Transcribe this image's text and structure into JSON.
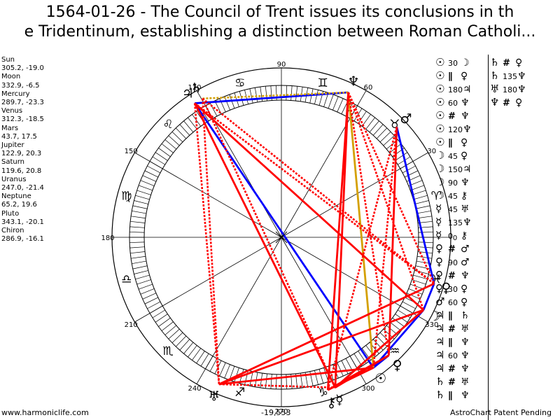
{
  "title_line1": "1564-01-26 - The Council of Trent issues its conclusions in th",
  "title_line2": "e Tridentinum, establishing a distinction between Roman Catholi...",
  "planets": [
    {
      "name": "Sun",
      "pos": "305.2, -19.0"
    },
    {
      "name": "Moon",
      "pos": "332.9, -6.5"
    },
    {
      "name": "Mercury",
      "pos": "289.7, -23.3"
    },
    {
      "name": "Venus",
      "pos": "312.3, -18.5"
    },
    {
      "name": "Mars",
      "pos": "43.7, 17.5"
    },
    {
      "name": "Jupiter",
      "pos": "122.9, 20.3"
    },
    {
      "name": "Saturn",
      "pos": "119.6, 20.8"
    },
    {
      "name": "Uranus",
      "pos": "247.0, -21.4"
    },
    {
      "name": "Neptune",
      "pos": "65.2, 19.6"
    },
    {
      "name": "Pluto",
      "pos": "343.1, -20.1"
    },
    {
      "name": "Chiron",
      "pos": "286.9, -16.1"
    }
  ],
  "aspects_col1": [
    {
      "a": "☉",
      "asp": "30",
      "b": "☽"
    },
    {
      "a": "☉",
      "asp": "∥",
      "b": "♀"
    },
    {
      "a": "☉",
      "asp": "180",
      "b": "♃"
    },
    {
      "a": "☉",
      "asp": "60",
      "b": "♆"
    },
    {
      "a": "☉",
      "asp": "#",
      "b": "♆"
    },
    {
      "a": "☉",
      "asp": "120",
      "b": "♆"
    },
    {
      "a": "☉",
      "asp": "∥",
      "b": "♀"
    },
    {
      "a": "☽",
      "asp": "45",
      "b": "♀"
    },
    {
      "a": "☽",
      "asp": "150",
      "b": "♃"
    },
    {
      "a": "☽",
      "asp": "90",
      "b": "♆"
    },
    {
      "a": "☽",
      "asp": "45",
      "b": "⚷"
    },
    {
      "a": "☿",
      "asp": "45",
      "b": "♅"
    },
    {
      "a": "☿",
      "asp": "135",
      "b": "♆"
    },
    {
      "a": "☿",
      "asp": "0",
      "b": "⚷"
    },
    {
      "a": "♀",
      "asp": "#",
      "b": "♂"
    },
    {
      "a": "♀",
      "asp": "90",
      "b": "♂"
    },
    {
      "a": "♀",
      "asp": "#",
      "b": "♆"
    },
    {
      "a": "♀",
      "asp": "30",
      "b": "♀"
    },
    {
      "a": "♂",
      "asp": "60",
      "b": "♀"
    },
    {
      "a": "♃",
      "asp": "∥",
      "b": "♄"
    },
    {
      "a": "♃",
      "asp": "#",
      "b": "♅"
    },
    {
      "a": "♃",
      "asp": "∥",
      "b": "♆"
    },
    {
      "a": "♃",
      "asp": "60",
      "b": "♆"
    },
    {
      "a": "♃",
      "asp": "#",
      "b": "♆"
    },
    {
      "a": "♄",
      "asp": "#",
      "b": "♅"
    },
    {
      "a": "♄",
      "asp": "∥",
      "b": "♆"
    }
  ],
  "aspects_col2": [
    {
      "a": "♄",
      "asp": "#",
      "b": "♀"
    },
    {
      "a": "♄",
      "asp": "135",
      "b": "♆"
    },
    {
      "a": "♅",
      "asp": "180",
      "b": "♆"
    },
    {
      "a": "♆",
      "asp": "#",
      "b": "♀"
    }
  ],
  "footer_left": "www.harmoniclife.com",
  "footer_mid": "-19,553",
  "footer_right": "AstroChart Patent Pending",
  "chart_data": {
    "type": "radial astrology chart (aspect wheel)",
    "degree_labels": [
      "0",
      "30",
      "60",
      "90",
      "120",
      "150",
      "180",
      "210",
      "240",
      "270",
      "300",
      "330"
    ],
    "zodiac_signs": [
      "♈",
      "♉",
      "♊",
      "♋",
      "♌",
      "♍",
      "♎",
      "♏",
      "♐",
      "♑",
      "♒",
      "♓"
    ],
    "bodies": [
      {
        "name": "Sun",
        "glyph": "☉",
        "lon": 305.2
      },
      {
        "name": "Moon",
        "glyph": "☽",
        "lon": 332.9
      },
      {
        "name": "Mercury",
        "glyph": "☿",
        "lon": 289.7
      },
      {
        "name": "Venus",
        "glyph": "♀",
        "lon": 312.3
      },
      {
        "name": "Mars",
        "glyph": "♂",
        "lon": 43.7
      },
      {
        "name": "Jupiter",
        "glyph": "♃",
        "lon": 122.9
      },
      {
        "name": "Saturn",
        "glyph": "♄",
        "lon": 119.6
      },
      {
        "name": "Uranus",
        "glyph": "♅",
        "lon": 247.0
      },
      {
        "name": "Neptune",
        "glyph": "♆",
        "lon": 65.2
      },
      {
        "name": "Pluto",
        "glyph": "♀",
        "lon": 343.1
      },
      {
        "name": "Chiron",
        "glyph": "⚷",
        "lon": 286.9
      }
    ],
    "aspect_lines": [
      {
        "from": "Jupiter",
        "to": "Neptune",
        "color": "#0000ff",
        "style": "solid"
      },
      {
        "from": "Jupiter",
        "to": "Sun",
        "color": "#0000ff",
        "style": "solid"
      },
      {
        "from": "Mars",
        "to": "Pluto",
        "color": "#0000ff",
        "style": "solid"
      },
      {
        "from": "Pluto",
        "to": "Moon",
        "color": "#0000ff",
        "style": "solid"
      },
      {
        "from": "Moon",
        "to": "Sun",
        "color": "#0000ff",
        "style": "solid"
      },
      {
        "from": "Venus",
        "to": "Sun",
        "color": "#0000ff",
        "style": "solid"
      },
      {
        "from": "Saturn",
        "to": "Neptune",
        "color": "#d4a000",
        "style": "dotted"
      },
      {
        "from": "Neptune",
        "to": "Sun",
        "color": "#d4a000",
        "style": "solid"
      },
      {
        "from": "Jupiter",
        "to": "Moon",
        "color": "#ff0000",
        "style": "solid"
      },
      {
        "from": "Jupiter",
        "to": "Mercury",
        "color": "#ff0000",
        "style": "solid"
      },
      {
        "from": "Jupiter",
        "to": "Pluto",
        "color": "#ff0000",
        "style": "dotted"
      },
      {
        "from": "Jupiter",
        "to": "Uranus",
        "color": "#ff0000",
        "style": "dotted"
      },
      {
        "from": "Saturn",
        "to": "Uranus",
        "color": "#ff0000",
        "style": "dotted"
      },
      {
        "from": "Saturn",
        "to": "Mercury",
        "color": "#ff0000",
        "style": "dotted"
      },
      {
        "from": "Saturn",
        "to": "Pluto",
        "color": "#ff0000",
        "style": "dotted"
      },
      {
        "from": "Neptune",
        "to": "Chiron",
        "color": "#ff0000",
        "style": "solid"
      },
      {
        "from": "Neptune",
        "to": "Mercury",
        "color": "#ff0000",
        "style": "solid"
      },
      {
        "from": "Neptune",
        "to": "Moon",
        "color": "#ff0000",
        "style": "dotted"
      },
      {
        "from": "Neptune",
        "to": "Venus",
        "color": "#ff0000",
        "style": "dotted"
      },
      {
        "from": "Neptune",
        "to": "Pluto",
        "color": "#ff0000",
        "style": "dotted"
      },
      {
        "from": "Mars",
        "to": "Venus",
        "color": "#ff0000",
        "style": "solid"
      },
      {
        "from": "Mars",
        "to": "Sun",
        "color": "#ff0000",
        "style": "dotted"
      },
      {
        "from": "Mars",
        "to": "Chiron",
        "color": "#ff0000",
        "style": "dotted"
      },
      {
        "from": "Uranus",
        "to": "Pluto",
        "color": "#ff0000",
        "style": "solid"
      },
      {
        "from": "Uranus",
        "to": "Moon",
        "color": "#ff0000",
        "style": "solid"
      },
      {
        "from": "Uranus",
        "to": "Sun",
        "color": "#ff0000",
        "style": "solid"
      },
      {
        "from": "Uranus",
        "to": "Mercury",
        "color": "#ff0000",
        "style": "dotted"
      },
      {
        "from": "Mercury",
        "to": "Moon",
        "color": "#ff0000",
        "style": "solid"
      },
      {
        "from": "Mercury",
        "to": "Venus",
        "color": "#ff0000",
        "style": "solid"
      },
      {
        "from": "Chiron",
        "to": "Sun",
        "color": "#ff0000",
        "style": "solid"
      },
      {
        "from": "Chiron",
        "to": "Venus",
        "color": "#ff0000",
        "style": "solid"
      }
    ],
    "center_marker": "origin-cross"
  }
}
